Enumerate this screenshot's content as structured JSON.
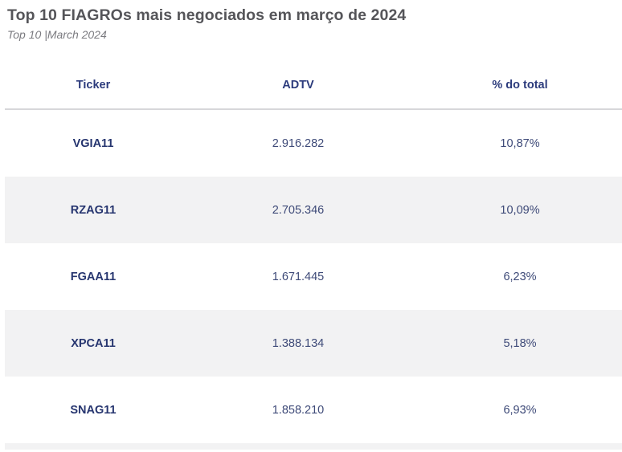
{
  "title": "Top 10 FIAGROs mais negociados em março de 2024",
  "subtitle": "Top 10  |March 2024",
  "table": {
    "columns": [
      "Ticker",
      "ADTV",
      "% do total"
    ],
    "rows": [
      [
        "VGIA11",
        "2.916.282",
        "10,87%"
      ],
      [
        "RZAG11",
        "2.705.346",
        "10,09%"
      ],
      [
        "FGAA11",
        "1.671.445",
        "6,23%"
      ],
      [
        "XPCA11",
        "1.388.134",
        "5,18%"
      ],
      [
        "SNAG11",
        "1.858.210",
        "6,93%"
      ]
    ]
  },
  "colors": {
    "title": "#555559",
    "header_text": "#2c3b7c",
    "ticker_text": "#26356f",
    "row_shade": "#f2f2f3",
    "divider": "#d7d7da"
  }
}
